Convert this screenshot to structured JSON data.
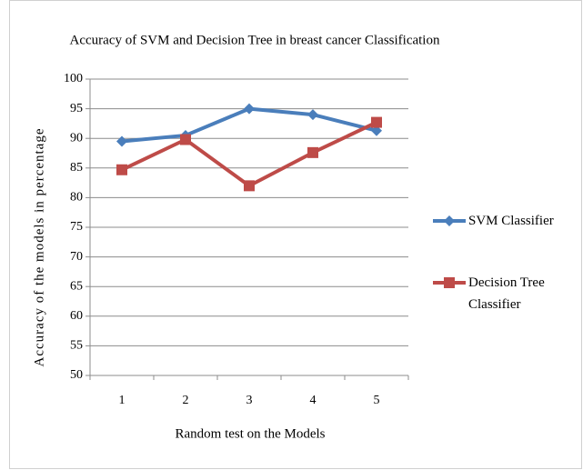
{
  "chart_data": {
    "type": "line",
    "title": "Accuracy of SVM and Decision Tree in breast cancer Classification",
    "x_label": "Random test on the Models",
    "y_label": "Accuracy of the models in percentage",
    "categories": [
      "1",
      "2",
      "3",
      "4",
      "5"
    ],
    "series": [
      {
        "name": "SVM Classifier",
        "color": "#4a7ebb",
        "marker": "diamond",
        "values": [
          89.5,
          90.5,
          95,
          94,
          91.3
        ]
      },
      {
        "name": "Decision Tree Classifier",
        "color": "#be4b48",
        "marker": "square",
        "values": [
          84.7,
          89.8,
          82,
          87.6,
          92.7
        ]
      }
    ],
    "ylim": [
      50,
      100
    ],
    "yticks": [
      50,
      55,
      60,
      65,
      70,
      75,
      80,
      85,
      90,
      95,
      100
    ],
    "grid": true,
    "legend": "right"
  }
}
